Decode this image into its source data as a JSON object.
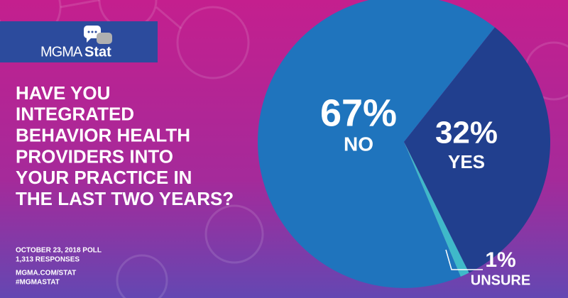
{
  "chart_data": {
    "type": "pie",
    "logo": {
      "brand": "MGMA",
      "suffix": "Stat"
    },
    "title_lines": [
      "HAVE YOU",
      "INTEGRATED",
      "BEHAVIOR HEALTH",
      "PROVIDERS INTO",
      "YOUR PRACTICE IN",
      "THE LAST TWO YEARS?"
    ],
    "categories": [
      "NO",
      "YES",
      "UNSURE"
    ],
    "values": [
      67,
      32,
      1
    ],
    "value_labels": [
      "67%",
      "32%",
      "1%"
    ],
    "colors": [
      "#1f74bd",
      "#213f8e",
      "#3fb9c9"
    ],
    "footer": [
      "OCTOBER 23, 2018 POLL",
      "1,313 RESPONSES",
      "MGMA.COM/STAT",
      "#MGMASTAT"
    ]
  }
}
